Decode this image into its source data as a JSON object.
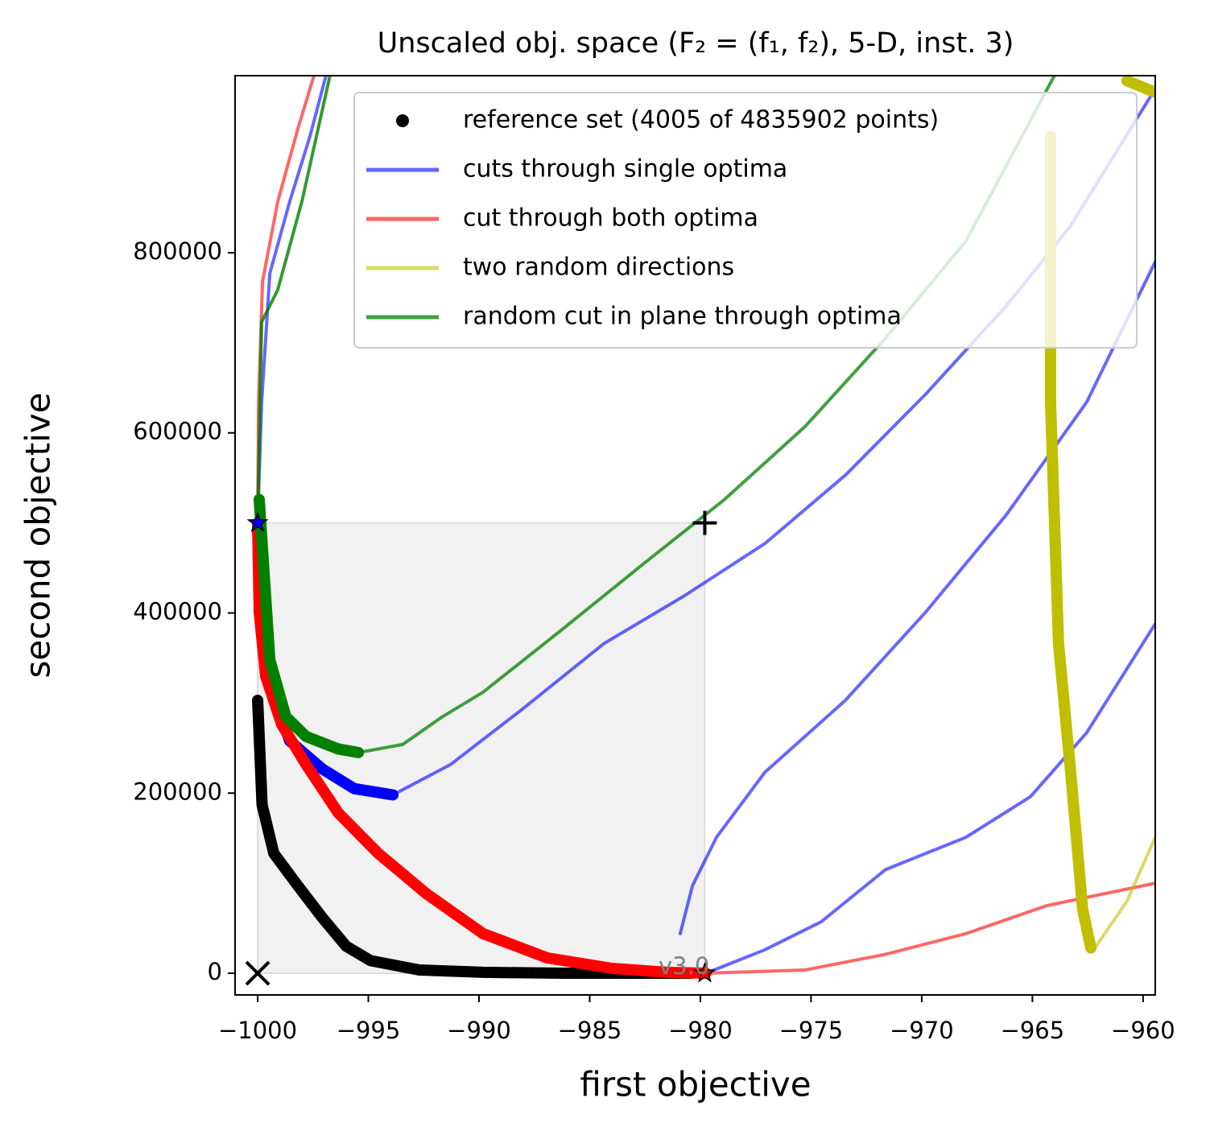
{
  "chart_data": {
    "type": "line",
    "title": "Unscaled obj. space (F₂ = (f₁, f₂), 5-D, inst. 3)",
    "x_label": "first objective",
    "y_label": "second objective",
    "annotation": "v3.0",
    "xlim": [
      -1001.02,
      -959.45
    ],
    "ylim": [
      -24100,
      996600
    ],
    "xticks": [
      {
        "value": -1000,
        "label": "−1000"
      },
      {
        "value": -995,
        "label": "−995"
      },
      {
        "value": -990,
        "label": "−990"
      },
      {
        "value": -985,
        "label": "−985"
      },
      {
        "value": -980,
        "label": "−980"
      },
      {
        "value": -975,
        "label": "−975"
      },
      {
        "value": -970,
        "label": "−970"
      },
      {
        "value": -965,
        "label": "−965"
      },
      {
        "value": -960,
        "label": "−960"
      }
    ],
    "yticks": [
      0,
      200000,
      400000,
      600000,
      800000
    ],
    "legend": "upper right",
    "box": {
      "x": [
        -1000,
        -979.8
      ],
      "y": [
        0,
        500000
      ],
      "color": "#f1f1f1"
    },
    "series": [
      {
        "name": "reference set (4005 of 4835902 points)",
        "color": "#000000",
        "marker": "o",
        "alpha": 1,
        "linewidth": 14,
        "x": [
          -1000,
          -999.8,
          -999.27,
          -998.18,
          -997.09,
          -996,
          -994.9,
          -992.7,
          -989.8,
          -986.2,
          -980.4
        ],
        "y": [
          303000,
          187000,
          133000,
          97000,
          62000,
          30000,
          14000,
          3600,
          1000,
          0,
          0
        ]
      },
      {
        "name": "cuts through single optima",
        "color": "#0000ff",
        "alpha": 0.6,
        "linewidth": 4,
        "x": [
          -993.89,
          -991.27,
          -988,
          -984.36,
          -980.73,
          -977.09,
          -973.45,
          -969.82,
          -966.18,
          -963.27,
          -959.45
        ],
        "y": [
          198000,
          232000,
          294000,
          366000,
          419000,
          477000,
          553000,
          643000,
          741000,
          830000,
          982000
        ]
      },
      {
        "name": "cut through both optima",
        "color": "#ff0000",
        "alpha": 0.6,
        "linewidth": 4,
        "x": [
          -979.75,
          -975.27,
          -971.64,
          -968,
          -964.36,
          -959.45
        ],
        "y": [
          0,
          3600,
          21000,
          44000,
          75000,
          100000
        ]
      },
      {
        "name": "two random directions",
        "color": "#bfbf00",
        "alpha": 0.6,
        "linewidth": 4,
        "x": [
          -962.18,
          -960.73,
          -959.45
        ],
        "y": [
          28000,
          80000,
          151000
        ]
      },
      {
        "name": "random cut in plane through optima",
        "color": "#008000",
        "alpha": 0.75,
        "linewidth": 4,
        "x": [
          -995.45,
          -993.45,
          -991.64,
          -989.82,
          -986.18,
          -982.55,
          -978.91,
          -975.27,
          -971.64,
          -968,
          -964
        ],
        "y": [
          245000,
          254000,
          285000,
          312000,
          383000,
          455000,
          526000,
          607000,
          705000,
          813000,
          997000
        ]
      },
      {
        "color": "#0000ff",
        "alpha": 1,
        "linewidth": 14,
        "x": [
          -1000,
          -999.45,
          -998.55,
          -997.09,
          -995.64,
          -993.89
        ],
        "y": [
          491000,
          321000,
          258000,
          227000,
          205000,
          198000
        ]
      },
      {
        "color": "#0000ff",
        "alpha": 0.6,
        "linewidth": 4,
        "x": [
          -1000,
          -999.82,
          -999.45,
          -998.55,
          -997.64,
          -996.91
        ],
        "y": [
          500000,
          634000,
          777000,
          857000,
          929000,
          997000
        ]
      },
      {
        "color": "#0000ff",
        "alpha": 0.6,
        "linewidth": 4,
        "x": [
          -980.91,
          -980.36,
          -979.27,
          -977.09,
          -973.45,
          -969.82,
          -966.18,
          -962.55,
          -959.45
        ],
        "y": [
          44000,
          97000,
          151000,
          223000,
          303000,
          401000,
          509000,
          634000,
          790000
        ]
      },
      {
        "color": "#0000ff",
        "alpha": 0.6,
        "linewidth": 4,
        "x": [
          -979.75,
          -977.09,
          -974.55,
          -971.64,
          -968,
          -965.09,
          -962.55,
          -959.45
        ],
        "y": [
          0,
          26000,
          57000,
          115000,
          151000,
          196000,
          267000,
          388000
        ]
      },
      {
        "color": "#ff0000",
        "alpha": 1,
        "linewidth": 14,
        "x": [
          -1000,
          -999.93,
          -999.64,
          -998.91,
          -997.82,
          -996.36,
          -994.55,
          -992.36,
          -989.82,
          -986.91,
          -984,
          -981.45,
          -979.75
        ],
        "y": [
          500000,
          401000,
          330000,
          276000,
          232000,
          178000,
          133000,
          88000,
          44000,
          17000,
          5400,
          900,
          0
        ]
      },
      {
        "color": "#ff0000",
        "alpha": 0.6,
        "linewidth": 4,
        "x": [
          -1000,
          -999.96,
          -999.78,
          -999.09,
          -998.18,
          -997.45
        ],
        "y": [
          500000,
          634000,
          768000,
          857000,
          938000,
          997000
        ]
      },
      {
        "color": "#bfbf00",
        "alpha": 1,
        "linewidth": 14,
        "x": [
          -964.18,
          -964.18,
          -963.82,
          -963.27,
          -962.73,
          -962.36
        ],
        "y": [
          929000,
          634000,
          366000,
          223000,
          71000,
          28000
        ]
      },
      {
        "color": "#bfbf00",
        "alpha": 1,
        "linewidth": 14,
        "x": [
          -960.73,
          -959.45
        ],
        "y": [
          991000,
          978000
        ]
      },
      {
        "color": "#008000",
        "alpha": 1,
        "linewidth": 14,
        "x": [
          -999.93,
          -999.45,
          -998.73,
          -997.82,
          -996.36,
          -995.45
        ],
        "y": [
          526000,
          348000,
          285000,
          263000,
          249000,
          245000
        ]
      },
      {
        "color": "#008000",
        "alpha": 0.8,
        "linewidth": 4,
        "x": [
          -1000,
          -999.82,
          -999.09,
          -998,
          -996.73
        ],
        "y": [
          500000,
          723000,
          759000,
          857000,
          997000
        ]
      }
    ],
    "markers": [
      {
        "symbol": "star",
        "color": "#0000ff",
        "x": -1000,
        "y": 500000
      },
      {
        "symbol": "star",
        "color": "#ff0000",
        "x": -979.8,
        "y": 0
      },
      {
        "symbol": "plus",
        "color": "#000000",
        "x": -979.8,
        "y": 500000
      },
      {
        "symbol": "cross",
        "color": "#000000",
        "x": -1000,
        "y": 0
      }
    ]
  }
}
